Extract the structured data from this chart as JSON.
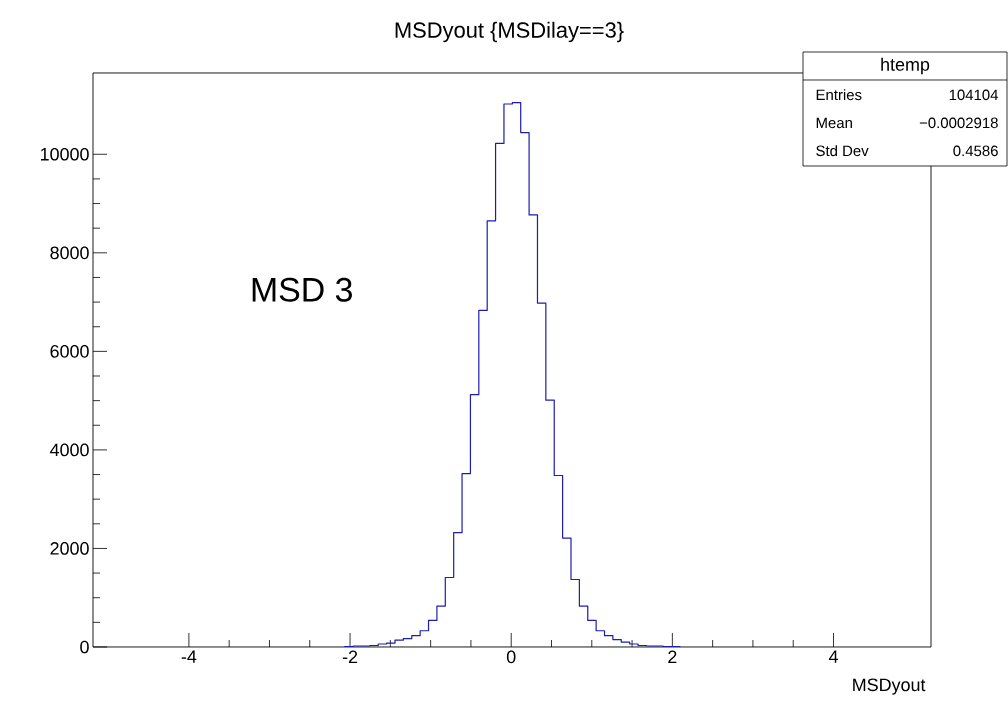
{
  "chart_data": {
    "type": "histogram",
    "title": "MSDyout {MSDilay==3}",
    "xlabel": "MSDyout",
    "annotations": [
      "MSD 3",
      "htemp",
      "Entries",
      "104104",
      "Mean",
      "−0.0002918",
      "Std Dev",
      "0.4586"
    ],
    "bins": [
      -2.066,
      -1.962,
      -1.858,
      -1.754,
      -1.65,
      -1.546,
      -1.442,
      -1.338,
      -1.234,
      -1.13,
      -1.026,
      -0.922,
      -0.818,
      -0.714,
      -0.61,
      -0.506,
      -0.402,
      -0.298,
      -0.194,
      -0.09,
      0.014,
      0.118,
      0.222,
      0.326,
      0.43,
      0.534,
      0.638,
      0.742,
      0.846,
      0.95,
      1.054,
      1.158,
      1.262,
      1.366,
      1.47,
      1.574,
      1.678,
      1.782,
      1.886,
      1.99,
      2.094
    ],
    "values": [
      10,
      20,
      20,
      30,
      60,
      80,
      140,
      170,
      230,
      330,
      540,
      830,
      1410,
      2320,
      3520,
      5120,
      6830,
      8650,
      10220,
      11020,
      11050,
      10440,
      8770,
      6980,
      5010,
      3480,
      2210,
      1370,
      830,
      540,
      330,
      230,
      150,
      100,
      60,
      30,
      20,
      20,
      10,
      10
    ],
    "color": "#1c1cb0",
    "xlim": [
      -5.19,
      5.21
    ],
    "ylim": [
      0,
      11650
    ],
    "xticks": [
      -4,
      -2,
      0,
      2,
      4
    ],
    "yticks": [
      0,
      2000,
      4000,
      6000,
      8000,
      10000
    ],
    "grid": false
  }
}
